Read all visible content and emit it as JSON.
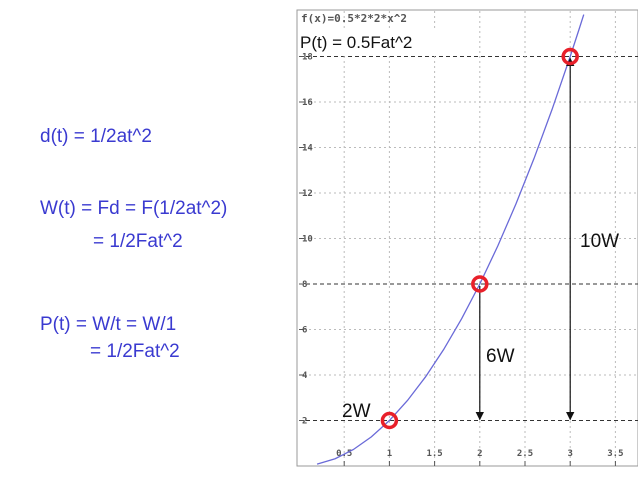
{
  "text_lines": [
    "d(t) = 1/2at^2",
    "W(t) = Fd = F(1/2at^2)",
    "= 1/2Fat^2",
    "P(t) = W/t = W/1",
    "= 1/2Fat^2"
  ],
  "chart_data": {
    "type": "line",
    "title": "f(x)=0.5*2*2*x^2",
    "annotations": [
      "P(t) = 0.5Fat^2",
      "2W",
      "6W",
      "10W"
    ],
    "xlim": [
      0,
      3.75
    ],
    "ylim": [
      0,
      20
    ],
    "xticks": [
      0.5,
      1,
      1.5,
      2,
      2.5,
      3,
      3.5
    ],
    "yticks": [
      2,
      4,
      6,
      8,
      10,
      12,
      14,
      16,
      18
    ],
    "grid": true,
    "series": [
      {
        "color": "#6a6ad8",
        "x": [
          0.2,
          0.4,
          0.6,
          0.8,
          1.0,
          1.2,
          1.4,
          1.6,
          1.8,
          2.0,
          2.2,
          2.4,
          2.6,
          2.8,
          3.0,
          3.1,
          3.15
        ],
        "values": [
          0.08,
          0.32,
          0.72,
          1.28,
          2,
          2.88,
          3.92,
          5.12,
          6.48,
          8,
          9.68,
          11.52,
          13.52,
          15.68,
          18,
          19.22,
          19.845
        ]
      },
      {
        "color": "#e8202a",
        "x": [
          1,
          2,
          3
        ],
        "values": [
          2,
          8,
          18
        ]
      }
    ]
  }
}
